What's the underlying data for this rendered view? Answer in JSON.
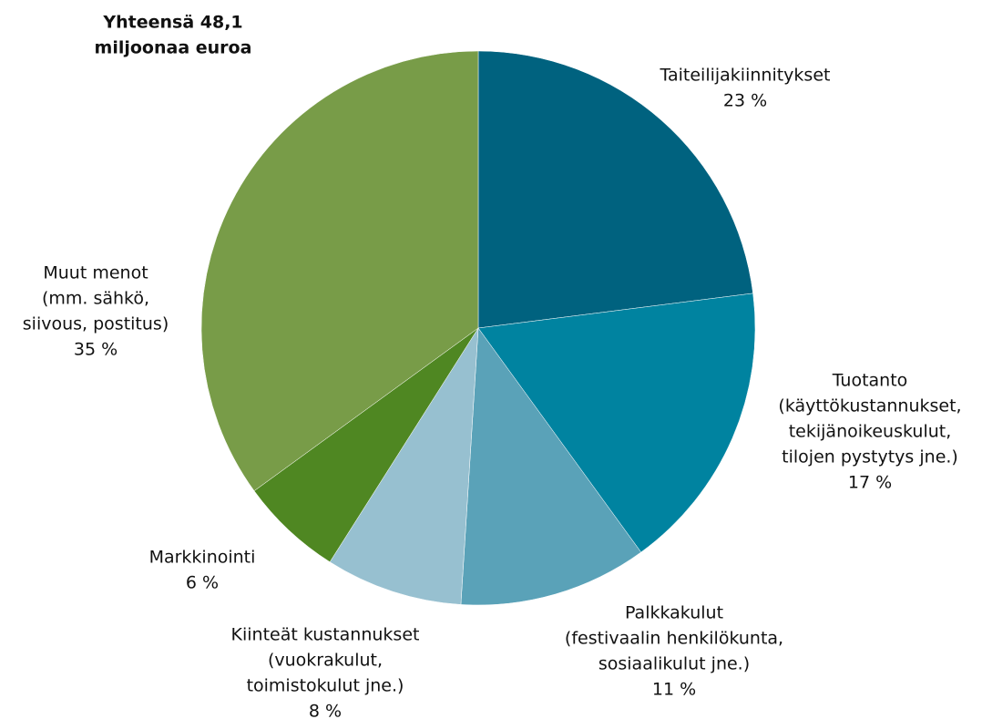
{
  "chart_data": {
    "type": "pie",
    "title": [
      "Yhteensä 48,1",
      "miljoonaa euroa"
    ],
    "categories": [
      [
        "Taiteilijakiinnitykset"
      ],
      [
        "Tuotanto",
        "(käyttökustannukset,",
        "tekijänoikeuskulut,",
        "tilojen pystytys jne.)"
      ],
      [
        "Palkkakulut",
        "(festivaalin henkilökunta,",
        "sosiaalikulut jne.)"
      ],
      [
        "Kiinteät kustannukset",
        "(vuokrakulut,",
        "toimistokulut jne.)"
      ],
      [
        "Markkinointi"
      ],
      [
        "Muut menot",
        "(mm. sähkö,",
        "siivous, postitus)"
      ]
    ],
    "values": [
      23,
      17,
      11,
      8,
      6,
      35
    ],
    "value_labels": [
      "23 %",
      "17 %",
      "11 %",
      "8 %",
      "6 %",
      "35 %"
    ],
    "colors": [
      "#00627f",
      "#0083a0",
      "#5aa2b8",
      "#97c0d0",
      "#4f8722",
      "#789c48"
    ]
  }
}
